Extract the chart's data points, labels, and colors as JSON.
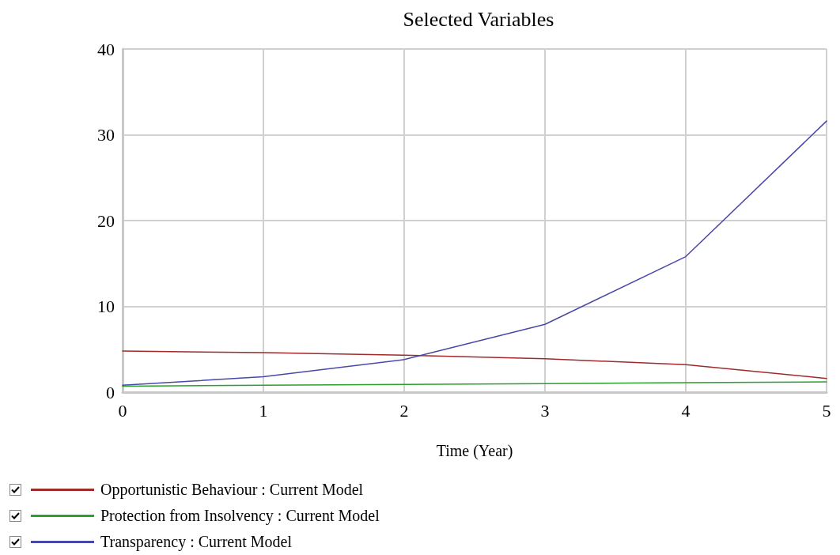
{
  "chart_data": {
    "type": "line",
    "title": "Selected Variables",
    "xlabel": "Time (Year)",
    "x": [
      0,
      1,
      2,
      3,
      4,
      5
    ],
    "series": [
      {
        "name": "Opportunistic Behaviour : Current Model",
        "color": "#9e2a2a",
        "values": [
          4.8,
          4.6,
          4.3,
          3.9,
          3.2,
          1.6
        ]
      },
      {
        "name": "Protection from Insolvency : Current Model",
        "color": "#2ca02c",
        "values": [
          0.7,
          0.8,
          0.9,
          1.0,
          1.1,
          1.2
        ]
      },
      {
        "name": "Transparency : Current Model",
        "color": "#4848a8",
        "values": [
          0.8,
          1.8,
          3.8,
          7.9,
          15.8,
          31.6
        ]
      }
    ],
    "xlim": [
      0,
      5
    ],
    "xticks": [
      0,
      1,
      2,
      3,
      4,
      5
    ],
    "ylim": [
      0,
      40
    ],
    "yticks": [
      0,
      10,
      20,
      30,
      40
    ],
    "grid": true,
    "legend": "bottom left",
    "marker": "none",
    "line_style": "solid"
  }
}
